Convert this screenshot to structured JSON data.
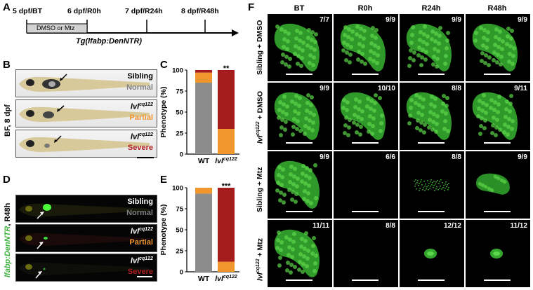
{
  "panels": {
    "A": "A",
    "B": "B",
    "C": "C",
    "D": "D",
    "E": "E",
    "F": "F"
  },
  "timeline": {
    "points": [
      "5 dpf/BT",
      "6 dpf/R0h",
      "7 dpf/R24h",
      "8 dpf/R48h"
    ],
    "treatment": "DMSO or Mtz",
    "transgene": "Tg(lfabp:DenNTR)"
  },
  "panel_b": {
    "side_label": "BF, 8 dpf",
    "fish": [
      {
        "genotype": "Sibling",
        "phenotype": "Normal",
        "color": "#808080"
      },
      {
        "genotype_base": "lvl",
        "genotype_sup": "cq122",
        "phenotype": "Partial",
        "color": "#f0962d"
      },
      {
        "genotype_base": "lvl",
        "genotype_sup": "cq122",
        "phenotype": "Severe",
        "color": "#b01e1e"
      }
    ]
  },
  "panel_d": {
    "side_label_green": "lfabp:DenNTR",
    "side_label_rest": ", R48h",
    "fish": [
      {
        "genotype": "Sibling",
        "phenotype": "Normal",
        "color": "#808080"
      },
      {
        "genotype_base": "lvl",
        "genotype_sup": "cq122",
        "phenotype": "Partial",
        "color": "#f0962d"
      },
      {
        "genotype_base": "lvl",
        "genotype_sup": "cq122",
        "phenotype": "Severe",
        "color": "#b01e1e"
      }
    ]
  },
  "chart_data": [
    {
      "type": "bar",
      "panel": "C",
      "ylabel": "Phenotype (%)",
      "yticks": [
        "0",
        "25",
        "50",
        "75",
        "100"
      ],
      "ylim": [
        0,
        100
      ],
      "categories": [
        {
          "base": "WT",
          "sup": ""
        },
        {
          "base": "lvl",
          "sup": "cq122"
        }
      ],
      "series": [
        {
          "name": "Normal",
          "color": "#8c8c8c",
          "values": [
            85,
            0
          ]
        },
        {
          "name": "Partial",
          "color": "#f0962d",
          "values": [
            12,
            30
          ]
        },
        {
          "name": "Severe",
          "color": "#a51c1c",
          "values": [
            3,
            70
          ]
        }
      ],
      "significance": "**"
    },
    {
      "type": "bar",
      "panel": "E",
      "ylabel": "Phenotype (%)",
      "yticks": [
        "0",
        "25",
        "50",
        "75",
        "100"
      ],
      "ylim": [
        0,
        100
      ],
      "categories": [
        {
          "base": "WT",
          "sup": ""
        },
        {
          "base": "lvl",
          "sup": "cq122"
        }
      ],
      "series": [
        {
          "name": "Normal",
          "color": "#8c8c8c",
          "values": [
            93,
            0
          ]
        },
        {
          "name": "Partial",
          "color": "#f0962d",
          "values": [
            7,
            12
          ]
        },
        {
          "name": "Severe",
          "color": "#a51c1c",
          "values": [
            0,
            88
          ]
        }
      ],
      "significance": "***"
    }
  ],
  "panel_f": {
    "columns": [
      "BT",
      "R0h",
      "R24h",
      "R48h"
    ],
    "rows": [
      {
        "label_pre": "Sibling + DMSO",
        "label_sup": "",
        "label_post": "",
        "ratios": [
          "7/7",
          "9/9",
          "9/9",
          "9/9"
        ],
        "liver": [
          1,
          1,
          1,
          1
        ]
      },
      {
        "label_pre": "lvl",
        "label_sup": "cq122",
        "label_post": " + DMSO",
        "ratios": [
          "9/9",
          "10/10",
          "8/8",
          "9/11"
        ],
        "liver": [
          1,
          1,
          1,
          1
        ]
      },
      {
        "label_pre": "Sibling + Mtz",
        "label_sup": "",
        "label_post": "",
        "ratios": [
          "9/9",
          "6/6",
          "8/8",
          "9/9"
        ],
        "liver": [
          1,
          0,
          0.35,
          0.6
        ]
      },
      {
        "label_pre": "lvl",
        "label_sup": "cq122",
        "label_post": " + Mtz",
        "ratios": [
          "11/11",
          "8/8",
          "12/12",
          "11/12"
        ],
        "liver": [
          1,
          0,
          0.12,
          0.1
        ]
      }
    ]
  }
}
